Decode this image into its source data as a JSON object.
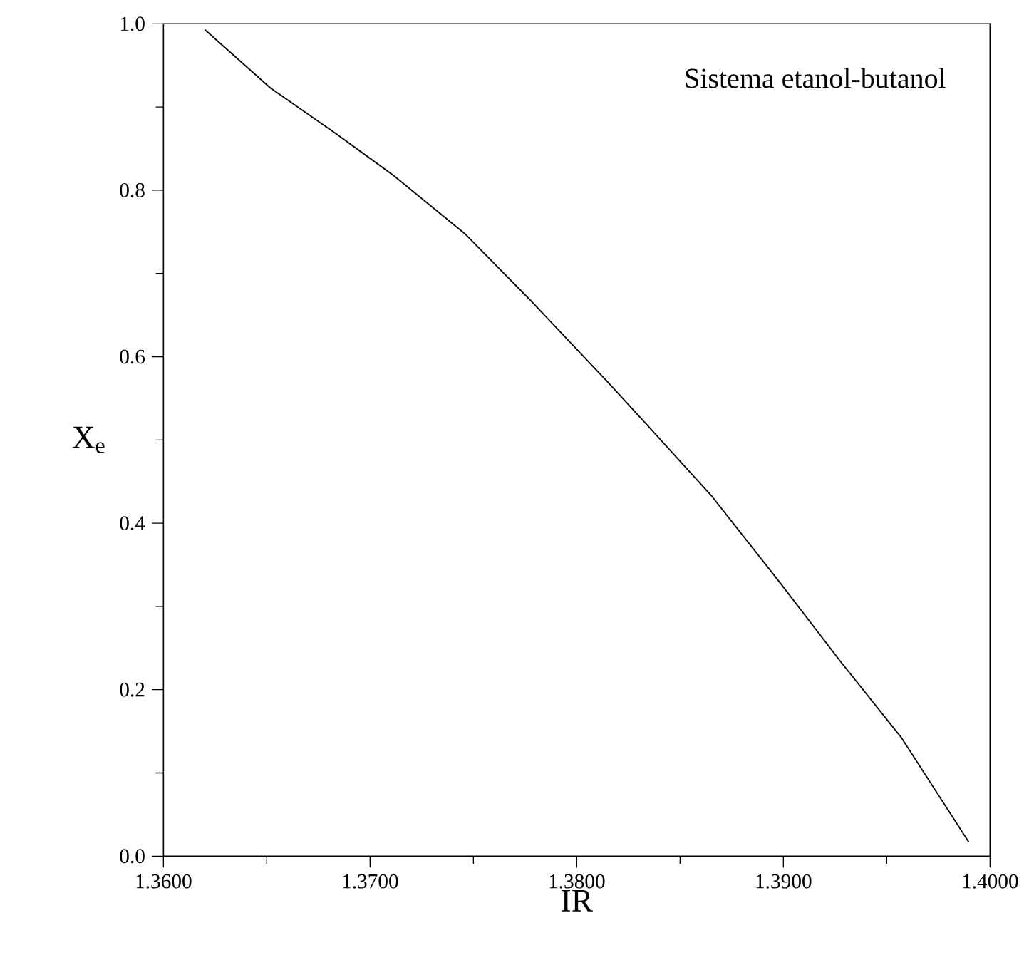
{
  "chart_data": {
    "type": "line",
    "xlabel": "IR",
    "ylabel": "X$_{e}$",
    "annotations": [
      "Sistema etanol-butanol"
    ],
    "x": [
      1.362,
      1.36517,
      1.36841,
      1.37117,
      1.37462,
      1.37779,
      1.38152,
      1.38359,
      1.38655,
      1.38979,
      1.39276,
      1.39572,
      1.39897
    ],
    "series": [
      {
        "color": "#000000",
        "values": [
          0.993,
          0.923,
          0.867,
          0.817,
          0.747,
          0.667,
          0.569,
          0.513,
          0.432,
          0.33,
          0.234,
          0.142,
          0.017
        ]
      }
    ],
    "xlim": [
      1.36,
      1.4
    ],
    "xticks": [
      {
        "value": 1.36,
        "label": "1.3600"
      },
      {
        "value": 1.37,
        "label": "1.3700"
      },
      {
        "value": 1.38,
        "label": "1.3800"
      },
      {
        "value": 1.39,
        "label": "1.3900"
      },
      {
        "value": 1.4,
        "label": "1.4000"
      }
    ],
    "ylim": [
      0,
      1
    ],
    "yticks": [
      {
        "value": 0,
        "label": "0.0"
      },
      {
        "value": 0.2,
        "label": "0.2"
      },
      {
        "value": 0.4,
        "label": "0.4"
      },
      {
        "value": 0.6,
        "label": "0.6"
      },
      {
        "value": 0.8,
        "label": "0.8"
      },
      {
        "value": 1.0,
        "label": "1.0"
      }
    ]
  }
}
